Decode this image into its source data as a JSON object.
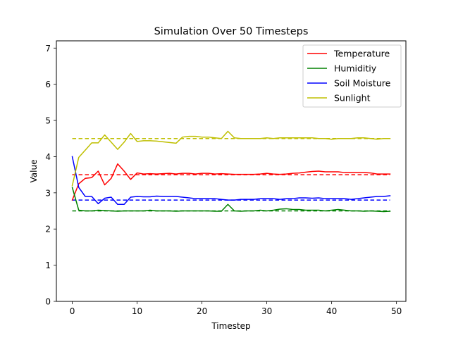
{
  "chart_data": {
    "type": "line",
    "title": "Simulation Over 50 Timesteps",
    "xlabel": "Timestep",
    "ylabel": "Value",
    "xlim": [
      -2.45,
      51.45
    ],
    "ylim": [
      0,
      7.2
    ],
    "xticks": [
      0,
      10,
      20,
      30,
      40,
      50
    ],
    "yticks": [
      0,
      1,
      2,
      3,
      4,
      5,
      6,
      7
    ],
    "grid": false,
    "legend_position": "top-right",
    "series": [
      {
        "name": "Temperature",
        "color": "#ff0000",
        "values": [
          2.8,
          3.25,
          3.4,
          3.42,
          3.6,
          3.22,
          3.4,
          3.8,
          3.6,
          3.37,
          3.55,
          3.52,
          3.53,
          3.52,
          3.53,
          3.54,
          3.52,
          3.54,
          3.54,
          3.52,
          3.54,
          3.54,
          3.52,
          3.53,
          3.52,
          3.51,
          3.51,
          3.51,
          3.51,
          3.52,
          3.54,
          3.52,
          3.51,
          3.52,
          3.54,
          3.55,
          3.57,
          3.59,
          3.6,
          3.58,
          3.58,
          3.58,
          3.56,
          3.56,
          3.56,
          3.56,
          3.55,
          3.52,
          3.52,
          3.52
        ]
      },
      {
        "name": "Humiditiy",
        "color": "#008000",
        "values": [
          3.15,
          2.52,
          2.5,
          2.5,
          2.52,
          2.51,
          2.5,
          2.49,
          2.5,
          2.5,
          2.5,
          2.5,
          2.52,
          2.5,
          2.5,
          2.5,
          2.49,
          2.5,
          2.5,
          2.5,
          2.5,
          2.5,
          2.49,
          2.49,
          2.68,
          2.5,
          2.49,
          2.5,
          2.5,
          2.52,
          2.5,
          2.52,
          2.55,
          2.56,
          2.54,
          2.54,
          2.52,
          2.52,
          2.52,
          2.5,
          2.52,
          2.54,
          2.52,
          2.5,
          2.5,
          2.49,
          2.5,
          2.49,
          2.48,
          2.49
        ]
      },
      {
        "name": "Soil Moisture",
        "color": "#0000ff",
        "values": [
          4.0,
          3.15,
          2.9,
          2.9,
          2.7,
          2.85,
          2.88,
          2.68,
          2.68,
          2.88,
          2.9,
          2.89,
          2.89,
          2.91,
          2.9,
          2.9,
          2.9,
          2.88,
          2.86,
          2.84,
          2.84,
          2.84,
          2.84,
          2.82,
          2.8,
          2.8,
          2.82,
          2.82,
          2.82,
          2.84,
          2.84,
          2.84,
          2.82,
          2.84,
          2.84,
          2.86,
          2.86,
          2.85,
          2.86,
          2.84,
          2.84,
          2.84,
          2.84,
          2.82,
          2.84,
          2.86,
          2.88,
          2.9,
          2.9,
          2.92
        ]
      },
      {
        "name": "Sunlight",
        "color": "#bfbf00",
        "values": [
          3.2,
          3.98,
          4.18,
          4.38,
          4.38,
          4.6,
          4.4,
          4.2,
          4.4,
          4.64,
          4.42,
          4.44,
          4.44,
          4.43,
          4.41,
          4.39,
          4.37,
          4.54,
          4.56,
          4.56,
          4.54,
          4.54,
          4.52,
          4.5,
          4.7,
          4.52,
          4.5,
          4.5,
          4.5,
          4.5,
          4.52,
          4.5,
          4.52,
          4.52,
          4.52,
          4.52,
          4.52,
          4.52,
          4.5,
          4.5,
          4.48,
          4.5,
          4.5,
          4.5,
          4.52,
          4.52,
          4.5,
          4.48,
          4.5,
          4.5
        ]
      }
    ],
    "reference_lines": [
      {
        "series": "Temperature",
        "color": "#ff0000",
        "y": 3.5
      },
      {
        "series": "Humiditiy",
        "color": "#008000",
        "y": 2.5
      },
      {
        "series": "Soil Moisture",
        "color": "#0000ff",
        "y": 2.8
      },
      {
        "series": "Sunlight",
        "color": "#bfbf00",
        "y": 4.5
      }
    ]
  }
}
